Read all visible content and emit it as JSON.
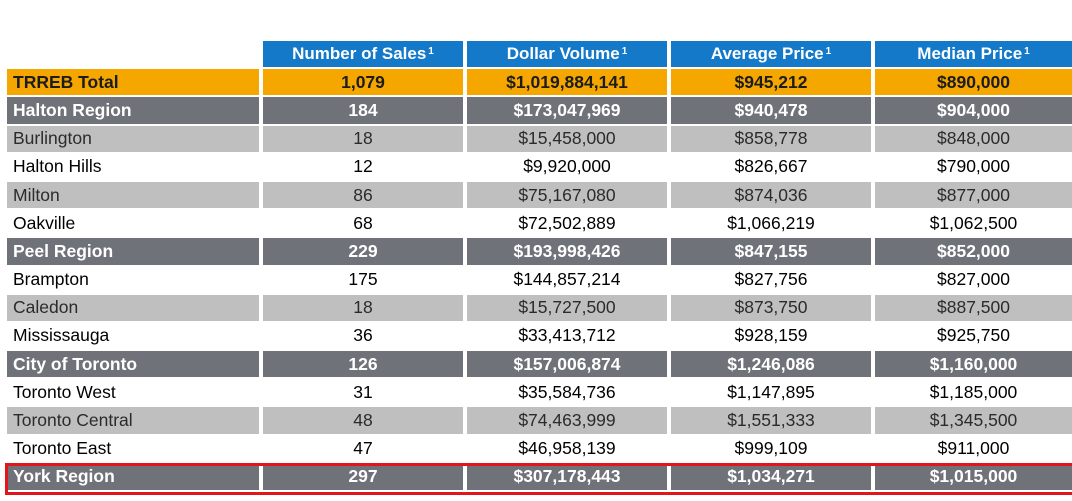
{
  "headers": {
    "sales": "Number of Sales",
    "sales_note": "1",
    "volume": "Dollar Volume",
    "volume_note": "1",
    "avg": "Average Price",
    "avg_note": "1",
    "median": "Median Price",
    "median_note": "1"
  },
  "rows": [
    {
      "name": "TRREB Total",
      "sales": "1,079",
      "volume": "$1,019,884,141",
      "avg": "$945,212",
      "median": "$890,000",
      "kind": "total"
    },
    {
      "name": "Halton Region",
      "sales": "184",
      "volume": "$173,047,969",
      "avg": "$940,478",
      "median": "$904,000",
      "kind": "region"
    },
    {
      "name": "Burlington",
      "sales": "18",
      "volume": "$15,458,000",
      "avg": "$858,778",
      "median": "$848,000",
      "kind": "sub-gray"
    },
    {
      "name": "Halton Hills",
      "sales": "12",
      "volume": "$9,920,000",
      "avg": "$826,667",
      "median": "$790,000",
      "kind": "sub-white"
    },
    {
      "name": "Milton",
      "sales": "86",
      "volume": "$75,167,080",
      "avg": "$874,036",
      "median": "$877,000",
      "kind": "sub-gray"
    },
    {
      "name": "Oakville",
      "sales": "68",
      "volume": "$72,502,889",
      "avg": "$1,066,219",
      "median": "$1,062,500",
      "kind": "sub-white"
    },
    {
      "name": "Peel Region",
      "sales": "229",
      "volume": "$193,998,426",
      "avg": "$847,155",
      "median": "$852,000",
      "kind": "region"
    },
    {
      "name": "Brampton",
      "sales": "175",
      "volume": "$144,857,214",
      "avg": "$827,756",
      "median": "$827,000",
      "kind": "sub-white"
    },
    {
      "name": "Caledon",
      "sales": "18",
      "volume": "$15,727,500",
      "avg": "$873,750",
      "median": "$887,500",
      "kind": "sub-gray"
    },
    {
      "name": "Mississauga",
      "sales": "36",
      "volume": "$33,413,712",
      "avg": "$928,159",
      "median": "$925,750",
      "kind": "sub-white"
    },
    {
      "name": "City of Toronto",
      "sales": "126",
      "volume": "$157,006,874",
      "avg": "$1,246,086",
      "median": "$1,160,000",
      "kind": "region"
    },
    {
      "name": "Toronto West",
      "sales": "31",
      "volume": "$35,584,736",
      "avg": "$1,147,895",
      "median": "$1,185,000",
      "kind": "sub-white"
    },
    {
      "name": "Toronto Central",
      "sales": "48",
      "volume": "$74,463,999",
      "avg": "$1,551,333",
      "median": "$1,345,500",
      "kind": "sub-gray"
    },
    {
      "name": "Toronto East",
      "sales": "47",
      "volume": "$46,958,139",
      "avg": "$999,109",
      "median": "$911,000",
      "kind": "sub-white"
    },
    {
      "name": "York Region",
      "sales": "297",
      "volume": "$307,178,443",
      "avg": "$1,034,271",
      "median": "$1,015,000",
      "kind": "region"
    }
  ],
  "colors": {
    "header_blue": "#1479c9",
    "total_orange": "#f5a700",
    "region_gray": "#6f7278",
    "sub_gray": "#bfbfbf",
    "highlight_red": "#e3151a"
  }
}
